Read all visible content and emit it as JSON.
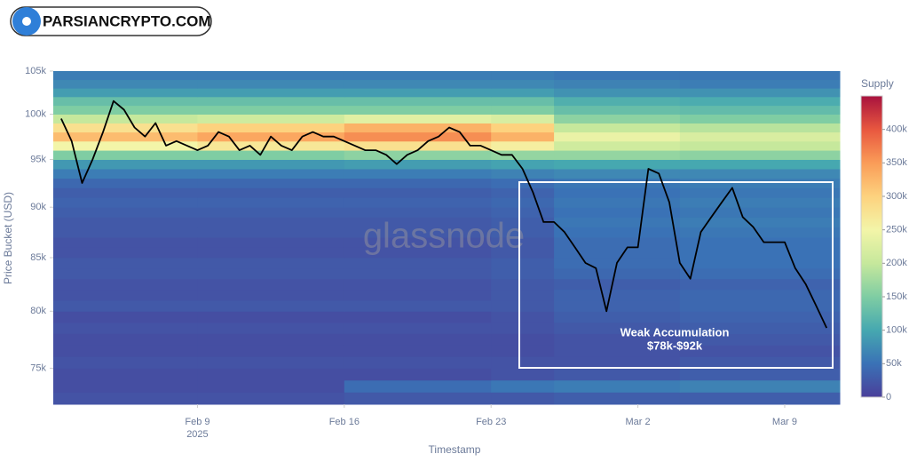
{
  "brand": "PARSIANCRYPTO.COM",
  "watermark": "glassnode",
  "chart_data": {
    "type": "heatmap",
    "y_title": "Price Bucket (USD)",
    "x_title": "Timestamp",
    "colorbar_title": "Supply",
    "annotation": [
      "Weak Accumulation",
      "$78k-$92k"
    ],
    "ylog": true,
    "ylim": [
      72000,
      105000
    ],
    "yticks": [
      {
        "value": 75000,
        "label": "75k"
      },
      {
        "value": 80000,
        "label": "80k"
      },
      {
        "value": 85000,
        "label": "85k"
      },
      {
        "value": 90000,
        "label": "90k"
      },
      {
        "value": 95000,
        "label": "95k"
      },
      {
        "value": 100000,
        "label": "100k"
      },
      {
        "value": 105000,
        "label": "105k"
      }
    ],
    "xlim": [
      "2025-02-02T03:00",
      "2025-03-11T15:00"
    ],
    "xticks": [
      {
        "value": "2025-02-09",
        "label": "Feb 9"
      },
      {
        "value": "2025-02-16",
        "label": "Feb 16"
      },
      {
        "value": "2025-02-23",
        "label": "Feb 23"
      },
      {
        "value": "2025-03-02",
        "label": "Mar 2"
      },
      {
        "value": "2025-03-09",
        "label": "Mar 9"
      }
    ],
    "x_year_label": "2025",
    "x_bins": [
      "2025-02-02T03:00",
      "2025-02-09",
      "2025-02-16",
      "2025-02-23",
      "2025-02-26",
      "2025-03-04",
      "2025-03-11T15:00"
    ],
    "y_bins": [
      72000,
      73000,
      74000,
      75000,
      76000,
      77000,
      78000,
      79000,
      80000,
      81000,
      82000,
      83000,
      84000,
      85000,
      86000,
      87000,
      88000,
      89000,
      90000,
      91000,
      92000,
      93000,
      94000,
      95000,
      96000,
      97000,
      98000,
      99000,
      100000,
      101000,
      102000,
      103000,
      104000,
      105000
    ],
    "z": [
      [
        20000,
        20000,
        25000,
        25000,
        30000,
        30000
      ],
      [
        15000,
        15000,
        45000,
        55000,
        60000,
        65000
      ],
      [
        15000,
        15000,
        15000,
        20000,
        25000,
        30000
      ],
      [
        20000,
        20000,
        20000,
        20000,
        20000,
        25000
      ],
      [
        15000,
        15000,
        15000,
        15000,
        20000,
        20000
      ],
      [
        15000,
        15000,
        15000,
        15000,
        20000,
        25000
      ],
      [
        20000,
        20000,
        20000,
        20000,
        25000,
        30000
      ],
      [
        15000,
        15000,
        15000,
        20000,
        30000,
        35000
      ],
      [
        25000,
        25000,
        25000,
        25000,
        35000,
        40000
      ],
      [
        20000,
        20000,
        20000,
        25000,
        35000,
        40000
      ],
      [
        20000,
        20000,
        20000,
        25000,
        30000,
        35000
      ],
      [
        25000,
        25000,
        25000,
        30000,
        40000,
        45000
      ],
      [
        25000,
        25000,
        25000,
        30000,
        45000,
        50000
      ],
      [
        20000,
        20000,
        20000,
        25000,
        45000,
        50000
      ],
      [
        20000,
        20000,
        20000,
        25000,
        45000,
        50000
      ],
      [
        25000,
        25000,
        25000,
        30000,
        50000,
        55000
      ],
      [
        25000,
        25000,
        25000,
        30000,
        55000,
        60000
      ],
      [
        30000,
        30000,
        30000,
        35000,
        50000,
        55000
      ],
      [
        35000,
        35000,
        35000,
        40000,
        55000,
        60000
      ],
      [
        30000,
        30000,
        30000,
        35000,
        50000,
        55000
      ],
      [
        40000,
        40000,
        40000,
        45000,
        55000,
        60000
      ],
      [
        60000,
        60000,
        60000,
        65000,
        70000,
        70000
      ],
      [
        85000,
        85000,
        90000,
        95000,
        100000,
        100000
      ],
      [
        150000,
        150000,
        160000,
        165000,
        165000,
        160000
      ],
      [
        250000,
        270000,
        280000,
        260000,
        210000,
        200000
      ],
      [
        320000,
        340000,
        360000,
        330000,
        240000,
        220000
      ],
      [
        280000,
        300000,
        330000,
        300000,
        200000,
        190000
      ],
      [
        200000,
        210000,
        230000,
        220000,
        160000,
        150000
      ],
      [
        150000,
        150000,
        150000,
        150000,
        130000,
        125000
      ],
      [
        130000,
        130000,
        130000,
        130000,
        110000,
        105000
      ],
      [
        90000,
        90000,
        90000,
        90000,
        80000,
        80000
      ],
      [
        70000,
        70000,
        70000,
        70000,
        65000,
        60000
      ],
      [
        60000,
        60000,
        60000,
        60000,
        55000,
        55000
      ]
    ],
    "zlim": [
      0,
      450000
    ],
    "zticks": [
      0,
      {
        "value": 50000,
        "label": "50k"
      },
      {
        "value": 100000,
        "label": "100k"
      },
      {
        "value": 150000,
        "label": "150k"
      },
      {
        "value": 200000,
        "label": "200k"
      },
      {
        "value": 250000,
        "label": "250k"
      },
      {
        "value": 300000,
        "label": "300k"
      },
      {
        "value": 350000,
        "label": "350k"
      },
      {
        "value": 400000,
        "label": "400k"
      }
    ],
    "colorscale": [
      "#4a3f9a",
      "#3a72b6",
      "#46a8b0",
      "#7fcda3",
      "#c6e89c",
      "#f3f5a8",
      "#fdd27e",
      "#fa9c58",
      "#e8573f",
      "#a8123e"
    ],
    "line": {
      "color": "#000000",
      "x": [
        "2025-02-02T12:00",
        "2025-02-03T00:00",
        "2025-02-03T12:00",
        "2025-02-04T00:00",
        "2025-02-04T12:00",
        "2025-02-05T00:00",
        "2025-02-05T12:00",
        "2025-02-06T00:00",
        "2025-02-06T12:00",
        "2025-02-07T00:00",
        "2025-02-07T12:00",
        "2025-02-08T00:00",
        "2025-02-08T12:00",
        "2025-02-09T00:00",
        "2025-02-09T12:00",
        "2025-02-10T00:00",
        "2025-02-10T12:00",
        "2025-02-11T00:00",
        "2025-02-11T12:00",
        "2025-02-12T00:00",
        "2025-02-12T12:00",
        "2025-02-13T00:00",
        "2025-02-13T12:00",
        "2025-02-14T00:00",
        "2025-02-14T12:00",
        "2025-02-15T00:00",
        "2025-02-15T12:00",
        "2025-02-16T00:00",
        "2025-02-16T12:00",
        "2025-02-17T00:00",
        "2025-02-17T12:00",
        "2025-02-18T00:00",
        "2025-02-18T12:00",
        "2025-02-19T00:00",
        "2025-02-19T12:00",
        "2025-02-20T00:00",
        "2025-02-20T12:00",
        "2025-02-21T00:00",
        "2025-02-21T12:00",
        "2025-02-22T00:00",
        "2025-02-22T12:00",
        "2025-02-23T00:00",
        "2025-02-23T12:00",
        "2025-02-24T00:00",
        "2025-02-24T12:00",
        "2025-02-25T00:00",
        "2025-02-25T12:00",
        "2025-02-26T00:00",
        "2025-02-26T12:00",
        "2025-02-27T00:00",
        "2025-02-27T12:00",
        "2025-02-28T00:00",
        "2025-02-28T12:00",
        "2025-03-01T00:00",
        "2025-03-01T12:00",
        "2025-03-02T00:00",
        "2025-03-02T12:00",
        "2025-03-03T00:00",
        "2025-03-03T12:00",
        "2025-03-04T00:00",
        "2025-03-04T12:00",
        "2025-03-05T00:00",
        "2025-03-05T12:00",
        "2025-03-06T00:00",
        "2025-03-06T12:00",
        "2025-03-07T00:00",
        "2025-03-07T12:00",
        "2025-03-08T00:00",
        "2025-03-08T12:00",
        "2025-03-09T00:00",
        "2025-03-09T12:00",
        "2025-03-10T00:00",
        "2025-03-10T12:00",
        "2025-03-11T00:00"
      ],
      "y": [
        99500,
        97000,
        92500,
        95000,
        98000,
        101500,
        100500,
        98500,
        97500,
        99000,
        96500,
        97000,
        96500,
        96000,
        96500,
        98000,
        97500,
        96000,
        96500,
        95500,
        97500,
        96500,
        96000,
        97500,
        98000,
        97500,
        97500,
        97000,
        96500,
        96000,
        96000,
        95500,
        94500,
        95500,
        96000,
        97000,
        97500,
        98500,
        98000,
        96500,
        96500,
        96000,
        95500,
        95500,
        94000,
        91500,
        88500,
        88500,
        87500,
        86000,
        84500,
        84000,
        80000,
        84500,
        86000,
        86000,
        94000,
        93500,
        90500,
        84500,
        83000,
        87500,
        89000,
        90500,
        92000,
        89000,
        88000,
        86500,
        86500,
        86500,
        84000,
        82500,
        80500,
        78500
      ]
    }
  }
}
